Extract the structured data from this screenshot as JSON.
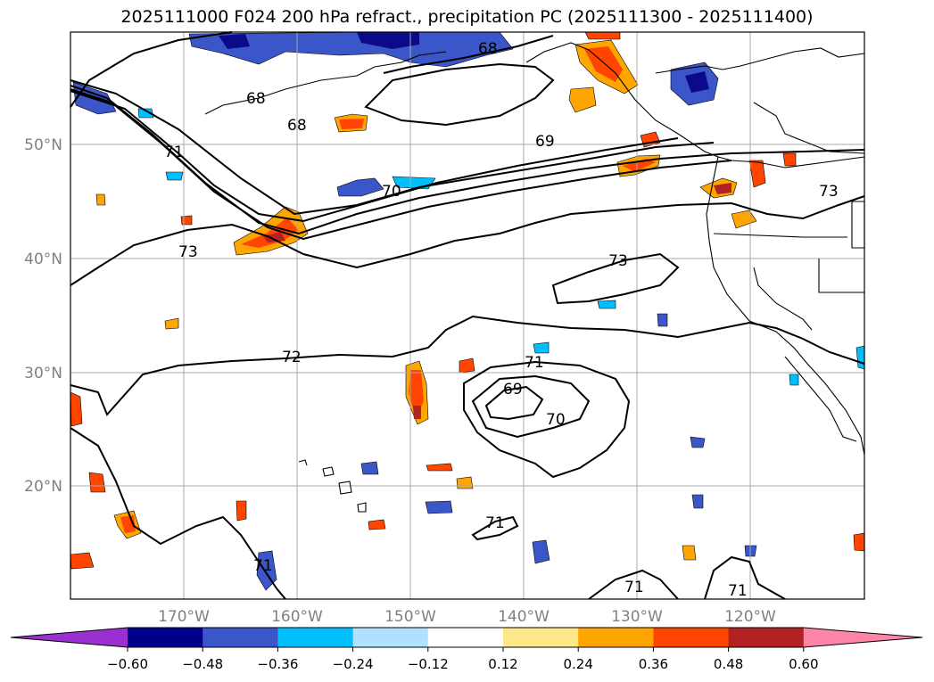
{
  "title": "2025111000 F024 200 hPa refract., precipitation PC (2025111300 - 2025111400)",
  "lat_labels": [
    "50°N",
    "40°N",
    "30°N",
    "20°N"
  ],
  "lon_labels": [
    "170°W",
    "160°W",
    "150°W",
    "140°W",
    "130°W",
    "120°W"
  ],
  "contour_labels": [
    "68",
    "68",
    "68",
    "69",
    "70",
    "71",
    "72",
    "73",
    "73",
    "73",
    "71",
    "69",
    "70",
    "71",
    "71",
    "71",
    "71"
  ],
  "colorbar": {
    "ticks": [
      "−0.60",
      "−0.48",
      "−0.36",
      "−0.24",
      "−0.12",
      "0.12",
      "0.24",
      "0.36",
      "0.48",
      "0.60"
    ],
    "colors": [
      "#9b30d0",
      "#00008b",
      "#3a56c8",
      "#00bfff",
      "#b0e2ff",
      "#ffffff",
      "#ffe88a",
      "#ffa500",
      "#ff4500",
      "#b22222",
      "#ff85a8"
    ]
  },
  "map_colors": {
    "neg_strong": "#0a0a8a",
    "neg_mid": "#3a56c8",
    "neg_light": "#00bfff",
    "neg_pale": "#b0e2ff",
    "pos_pale": "#ffe88a",
    "pos_mid": "#ffa500",
    "pos_strong": "#ff4500",
    "pos_dark": "#b22222"
  }
}
